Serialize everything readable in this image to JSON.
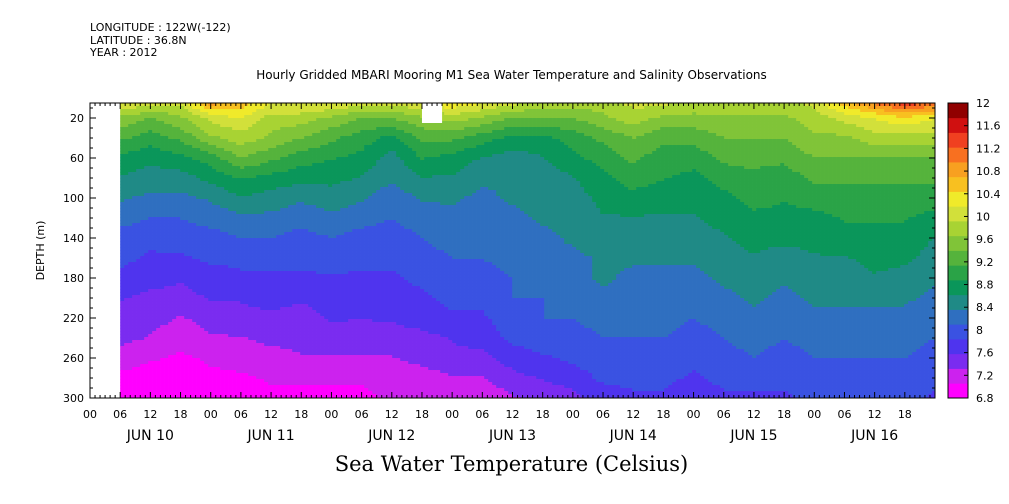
{
  "header": {
    "longitude": "LONGITUDE : 122W(-122)",
    "latitude": "LATITUDE : 36.8N",
    "year": "YEAR : 2012"
  },
  "title": "Hourly Gridded MBARI Mooring M1 Sea Water Temperature and Salinity Observations",
  "bottom_title": "Sea Water Temperature (Celsius)",
  "colors": {
    "palette": [
      "#ff00ff",
      "#cc22ee",
      "#7a2cf0",
      "#4f34ee",
      "#3a52e2",
      "#2f6fc0",
      "#1f8a86",
      "#0a965a",
      "#2aa347",
      "#55b33c",
      "#80c438",
      "#a8d333",
      "#d2e03a",
      "#f0ea2a",
      "#f8c020",
      "#f8a020",
      "#f87020",
      "#f04020",
      "#d01010",
      "#900000"
    ],
    "missing": "#ffffff"
  },
  "chart_data": {
    "type": "heatmap",
    "title": "Hourly Gridded MBARI Mooring M1 Sea Water Temperature and Salinity Observations",
    "xlabel": "",
    "ylabel": "DEPTH (m)",
    "x_tick_labels": [
      "00",
      "06",
      "12",
      "18",
      "00",
      "06",
      "12",
      "18",
      "00",
      "06",
      "12",
      "18",
      "00",
      "06",
      "12",
      "18",
      "00",
      "06",
      "12",
      "18",
      "00",
      "06",
      "12",
      "18",
      "00",
      "06",
      "12",
      "18"
    ],
    "x_day_labels": [
      "JUN 10",
      "JUN 11",
      "JUN 12",
      "JUN 13",
      "JUN 14",
      "JUN 15",
      "JUN 16"
    ],
    "x_range_hours": [
      0,
      168
    ],
    "data_start_hour": 6,
    "y_ticks": [
      20,
      60,
      100,
      140,
      180,
      220,
      260,
      300
    ],
    "ylim": [
      300,
      5
    ],
    "colorbar": {
      "levels": [
        6.8,
        7.2,
        7.6,
        8,
        8.4,
        8.8,
        9.2,
        9.6,
        10,
        10.4,
        10.8,
        11.2,
        11.6,
        12
      ],
      "labels": [
        "12",
        "11.6",
        "11.2",
        "10.8",
        "10.4",
        "10",
        "9.6",
        "9.2",
        "8.8",
        "8.4",
        "8",
        "7.6",
        "7.2",
        "6.8"
      ]
    },
    "depths": [
      5,
      20,
      40,
      60,
      80,
      100,
      120,
      140,
      160,
      180,
      200,
      220,
      240,
      260,
      280,
      300
    ],
    "times": [
      6,
      12,
      18,
      24,
      30,
      36,
      42,
      48,
      54,
      60,
      66,
      72,
      78,
      84,
      90,
      96,
      102,
      108,
      114,
      120,
      126,
      132,
      138,
      144,
      150,
      156,
      162,
      168
    ],
    "values": [
      [
        10.2,
        9.6,
        9.2,
        8.8,
        8.6,
        8.4,
        8.2,
        8.0,
        7.9,
        7.8,
        7.6,
        7.5,
        7.4,
        7.2,
        7.0,
        6.9
      ],
      [
        10.0,
        9.4,
        9.0,
        8.7,
        8.5,
        8.3,
        8.1,
        7.9,
        7.8,
        7.7,
        7.5,
        7.4,
        7.3,
        7.1,
        6.9,
        6.9
      ],
      [
        10.0,
        9.6,
        9.2,
        8.8,
        8.5,
        8.3,
        8.1,
        8.0,
        7.8,
        7.6,
        7.5,
        7.3,
        7.2,
        7.0,
        6.9,
        6.8
      ],
      [
        10.8,
        10.0,
        9.6,
        9.0,
        8.7,
        8.4,
        8.2,
        8.0,
        7.9,
        7.7,
        7.6,
        7.4,
        7.3,
        7.1,
        7.0,
        6.9
      ],
      [
        10.6,
        10.2,
        9.8,
        9.4,
        8.9,
        8.6,
        8.3,
        8.1,
        7.9,
        7.8,
        7.6,
        7.5,
        7.3,
        7.2,
        7.0,
        6.9
      ],
      [
        10.2,
        9.8,
        9.6,
        9.2,
        8.8,
        8.5,
        8.3,
        8.1,
        7.9,
        7.8,
        7.7,
        7.5,
        7.4,
        7.2,
        7.1,
        7.0
      ],
      [
        10.2,
        9.8,
        9.4,
        9.0,
        8.7,
        8.4,
        8.2,
        8.0,
        7.9,
        7.8,
        7.6,
        7.5,
        7.4,
        7.3,
        7.1,
        7.0
      ],
      [
        10.2,
        9.6,
        9.2,
        8.9,
        8.7,
        8.5,
        8.3,
        8.1,
        8.0,
        7.8,
        7.7,
        7.6,
        7.5,
        7.3,
        7.1,
        7.0
      ],
      [
        10.0,
        9.4,
        9.0,
        8.8,
        8.6,
        8.4,
        8.2,
        8.0,
        7.9,
        7.8,
        7.7,
        7.6,
        7.4,
        7.3,
        7.1,
        7.0
      ],
      [
        10.0,
        9.4,
        8.8,
        8.5,
        8.4,
        8.2,
        8.1,
        8.0,
        7.9,
        7.8,
        7.7,
        7.6,
        7.5,
        7.3,
        7.2,
        7.1
      ],
      [
        10.2,
        9.6,
        9.2,
        8.9,
        8.6,
        8.4,
        8.2,
        8.1,
        8.0,
        7.9,
        7.8,
        7.7,
        7.5,
        7.4,
        7.2,
        7.1
      ],
      [
        10.4,
        9.8,
        9.2,
        8.8,
        8.6,
        8.4,
        8.3,
        8.2,
        8.1,
        8.0,
        7.9,
        7.8,
        7.6,
        7.5,
        7.3,
        7.1
      ],
      [
        10.2,
        9.6,
        9.0,
        8.6,
        8.4,
        8.3,
        8.2,
        8.1,
        8.1,
        8.0,
        7.9,
        7.8,
        7.7,
        7.5,
        7.3,
        7.1
      ],
      [
        10.0,
        9.4,
        8.8,
        8.5,
        8.4,
        8.4,
        8.3,
        8.3,
        8.2,
        8.1,
        8.1,
        8.0,
        7.9,
        7.7,
        7.5,
        7.3
      ],
      [
        9.8,
        9.4,
        8.8,
        8.6,
        8.5,
        8.4,
        8.4,
        8.3,
        8.3,
        8.2,
        8.1,
        8.1,
        8.0,
        7.8,
        7.6,
        7.4
      ],
      [
        9.8,
        9.4,
        9.0,
        8.8,
        8.6,
        8.5,
        8.4,
        8.4,
        8.3,
        8.3,
        8.2,
        8.1,
        8.0,
        7.9,
        7.7,
        7.5
      ],
      [
        9.8,
        9.6,
        9.2,
        9.0,
        8.8,
        8.7,
        8.6,
        8.5,
        8.4,
        8.4,
        8.3,
        8.2,
        8.1,
        8.0,
        7.9,
        7.7
      ],
      [
        10.0,
        9.8,
        9.4,
        9.2,
        9.0,
        8.8,
        8.6,
        8.5,
        8.4,
        8.3,
        8.3,
        8.2,
        8.1,
        8.0,
        7.9,
        7.8
      ],
      [
        10.0,
        9.6,
        9.2,
        9.0,
        8.9,
        8.7,
        8.6,
        8.5,
        8.4,
        8.3,
        8.3,
        8.2,
        8.1,
        8.0,
        7.9,
        7.8
      ],
      [
        9.8,
        9.6,
        9.2,
        9.0,
        8.8,
        8.7,
        8.6,
        8.5,
        8.4,
        8.3,
        8.2,
        8.1,
        8.0,
        7.9,
        7.8,
        7.7
      ],
      [
        9.8,
        9.6,
        9.4,
        9.2,
        9.0,
        8.8,
        8.7,
        8.6,
        8.5,
        8.4,
        8.3,
        8.2,
        8.1,
        8.0,
        7.9,
        7.8
      ],
      [
        9.8,
        9.6,
        9.4,
        9.2,
        9.1,
        9.0,
        8.8,
        8.7,
        8.6,
        8.5,
        8.4,
        8.3,
        8.2,
        8.1,
        7.9,
        7.8
      ],
      [
        9.8,
        9.6,
        9.4,
        9.2,
        9.0,
        8.9,
        8.8,
        8.7,
        8.5,
        8.4,
        8.3,
        8.2,
        8.1,
        8.0,
        7.9,
        7.8
      ],
      [
        10.0,
        9.8,
        9.6,
        9.4,
        9.2,
        9.0,
        8.8,
        8.7,
        8.6,
        8.5,
        8.4,
        8.3,
        8.2,
        8.1,
        8.0,
        7.9
      ],
      [
        10.6,
        10.0,
        9.6,
        9.4,
        9.2,
        9.0,
        8.9,
        8.8,
        8.6,
        8.5,
        8.4,
        8.3,
        8.2,
        8.1,
        8.0,
        7.9
      ],
      [
        11.0,
        10.2,
        9.8,
        9.4,
        9.2,
        9.0,
        8.9,
        8.8,
        8.7,
        8.6,
        8.4,
        8.3,
        8.2,
        8.1,
        8.0,
        7.9
      ],
      [
        11.4,
        10.4,
        9.8,
        9.4,
        9.2,
        9.0,
        8.9,
        8.8,
        8.7,
        8.5,
        8.4,
        8.3,
        8.2,
        8.1,
        8.0,
        7.9
      ],
      [
        11.2,
        10.2,
        9.8,
        9.4,
        9.2,
        9.0,
        8.8,
        8.6,
        8.5,
        8.4,
        8.3,
        8.2,
        8.1,
        8.0,
        7.9,
        7.8
      ]
    ],
    "missing_cells": [
      {
        "time_from": 66,
        "time_to": 70,
        "depth_from": 5,
        "depth_to": 25
      }
    ]
  }
}
